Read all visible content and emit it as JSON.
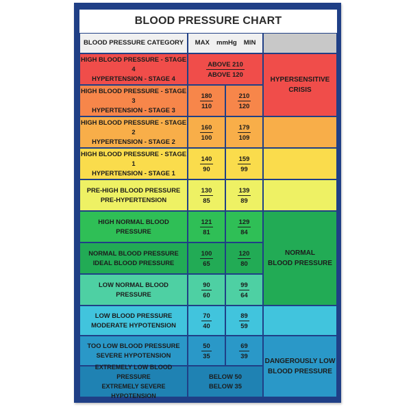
{
  "title": "BLOOD PRESSURE CHART",
  "header": {
    "category": "BLOOD PRESSURE CATEGORY",
    "max": "MAX",
    "unit": "mmHg",
    "min": "MIN"
  },
  "colors": {
    "frame": "#1f3f86",
    "stage4": "#f04d4a",
    "stage3": "#f7864a",
    "stage2": "#f8ae49",
    "stage1": "#fadc4c",
    "pre_high": "#eef164",
    "high_normal": "#2fbf56",
    "normal": "#22ab55",
    "low_normal": "#4ed0a3",
    "low": "#41c4dd",
    "too_low": "#2a98c8",
    "extremely_low": "#1f82b3"
  },
  "rows": [
    {
      "label1": "HIGH BLOOD PRESSURE - STAGE 4",
      "label2": "HYPERTENSION - STAGE 4",
      "combined1": "ABOVE 210",
      "combined2": "ABOVE 120"
    },
    {
      "label1": "HIGH BLOOD PRESSURE - STAGE 3",
      "label2": "HYPERTENSION - STAGE 3",
      "max_sys": "180",
      "max_dia": "110",
      "min_sys": "210",
      "min_dia": "120"
    },
    {
      "label1": "HIGH BLOOD PRESSURE - STAGE 2",
      "label2": "HYPERTENSION - STAGE 2",
      "max_sys": "160",
      "max_dia": "100",
      "min_sys": "179",
      "min_dia": "109"
    },
    {
      "label1": "HIGH BLOOD PRESSURE - STAGE 1",
      "label2": "HYPERTENSION - STAGE 1",
      "max_sys": "140",
      "max_dia": "90",
      "min_sys": "159",
      "min_dia": "99"
    },
    {
      "label1": "PRE-HIGH BLOOD PRESSURE",
      "label2": "PRE-HYPERTENSION",
      "max_sys": "130",
      "max_dia": "85",
      "min_sys": "139",
      "min_dia": "89"
    },
    {
      "label1": "HIGH NORMAL BLOOD PRESSURE",
      "max_sys": "121",
      "max_dia": "81",
      "min_sys": "129",
      "min_dia": "84"
    },
    {
      "label1": "NORMAL BLOOD PRESSURE",
      "label2": "IDEAL BLOOD PRESSURE",
      "max_sys": "100",
      "max_dia": "65",
      "min_sys": "120",
      "min_dia": "80"
    },
    {
      "label1": "LOW NORMAL BLOOD PRESSURE",
      "max_sys": "90",
      "max_dia": "60",
      "min_sys": "99",
      "min_dia": "64"
    },
    {
      "label1": "LOW BLOOD PRESSURE",
      "label2": "MODERATE HYPOTENSION",
      "max_sys": "70",
      "max_dia": "40",
      "min_sys": "89",
      "min_dia": "59"
    },
    {
      "label1": "TOO LOW BLOOD PRESSURE",
      "label2": "SEVERE HYPOTENSION",
      "max_sys": "50",
      "max_dia": "35",
      "min_sys": "69",
      "min_dia": "39"
    },
    {
      "label1": "EXTREMELY LOW BLOOD PRESSURE",
      "label2": "EXTREMELY SEVERE HYPOTENSION",
      "combined1": "BELOW 50",
      "combined2": "BELOW 35"
    }
  ],
  "notes": {
    "crisis1": "HYPERSENSITIVE",
    "crisis2": "CRISIS",
    "normal1": "NORMAL",
    "normal2": "BLOOD PRESSURE",
    "danger1": "DANGEROUSLY LOW",
    "danger2": "BLOOD PRESSURE"
  }
}
